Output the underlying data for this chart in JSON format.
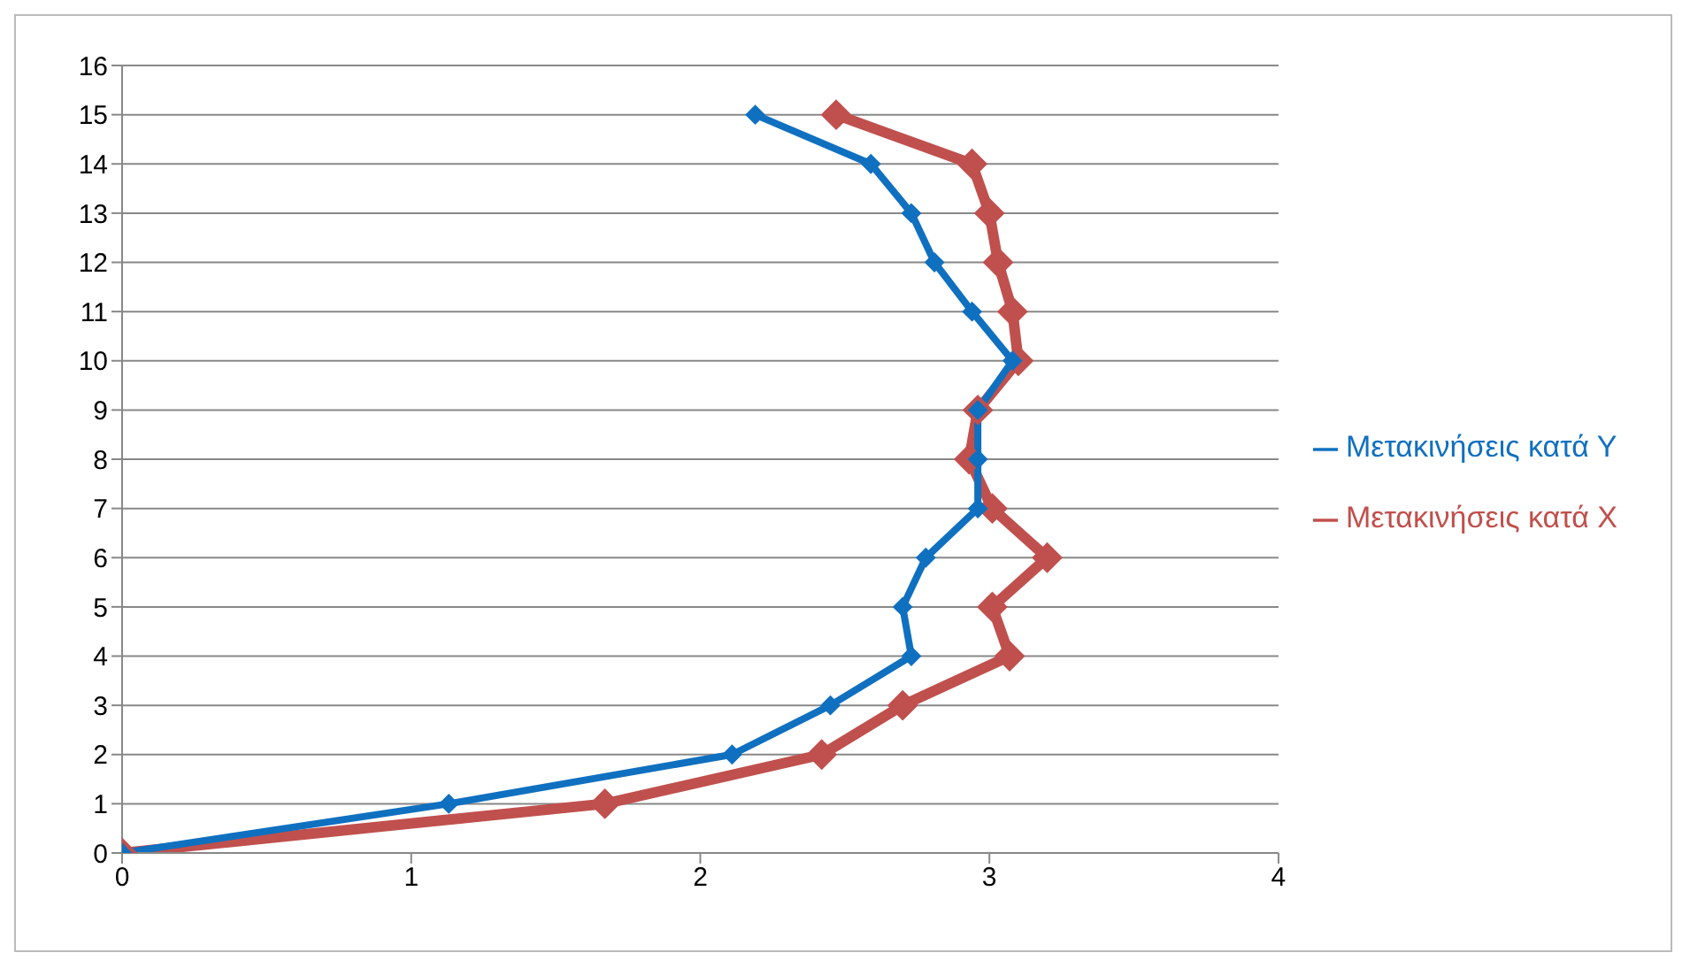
{
  "chart_data": {
    "type": "line",
    "xlim": [
      0,
      4
    ],
    "xticks": [
      0,
      1,
      2,
      3,
      4
    ],
    "ylim": [
      0,
      16
    ],
    "yticks": [
      0,
      1,
      2,
      3,
      4,
      5,
      6,
      7,
      8,
      9,
      10,
      11,
      12,
      13,
      14,
      15,
      16
    ],
    "grid": "y",
    "legend": "right",
    "marker": "diamond",
    "line_style": "solid",
    "series": [
      {
        "name": "Μετακινήσεις κατά Χ",
        "color": "#c0504d",
        "x": [
          0,
          1.67,
          2.42,
          2.7,
          3.07,
          3.01,
          3.2,
          3.01,
          2.93,
          2.96,
          3.1,
          3.08,
          3.03,
          3.0,
          2.94,
          2.47
        ],
        "values": [
          0,
          1,
          2,
          3,
          4,
          5,
          6,
          7,
          8,
          9,
          10,
          11,
          12,
          13,
          14,
          15
        ]
      },
      {
        "name": "Μετακινήσεις κατά Υ",
        "color": "#1070c0",
        "x": [
          0,
          1.13,
          2.11,
          2.45,
          2.73,
          2.7,
          2.78,
          2.96,
          2.96,
          2.96,
          3.08,
          2.94,
          2.81,
          2.73,
          2.59,
          2.19
        ],
        "values": [
          0,
          1,
          2,
          3,
          4,
          5,
          6,
          7,
          8,
          9,
          10,
          11,
          12,
          13,
          14,
          15
        ]
      }
    ]
  }
}
